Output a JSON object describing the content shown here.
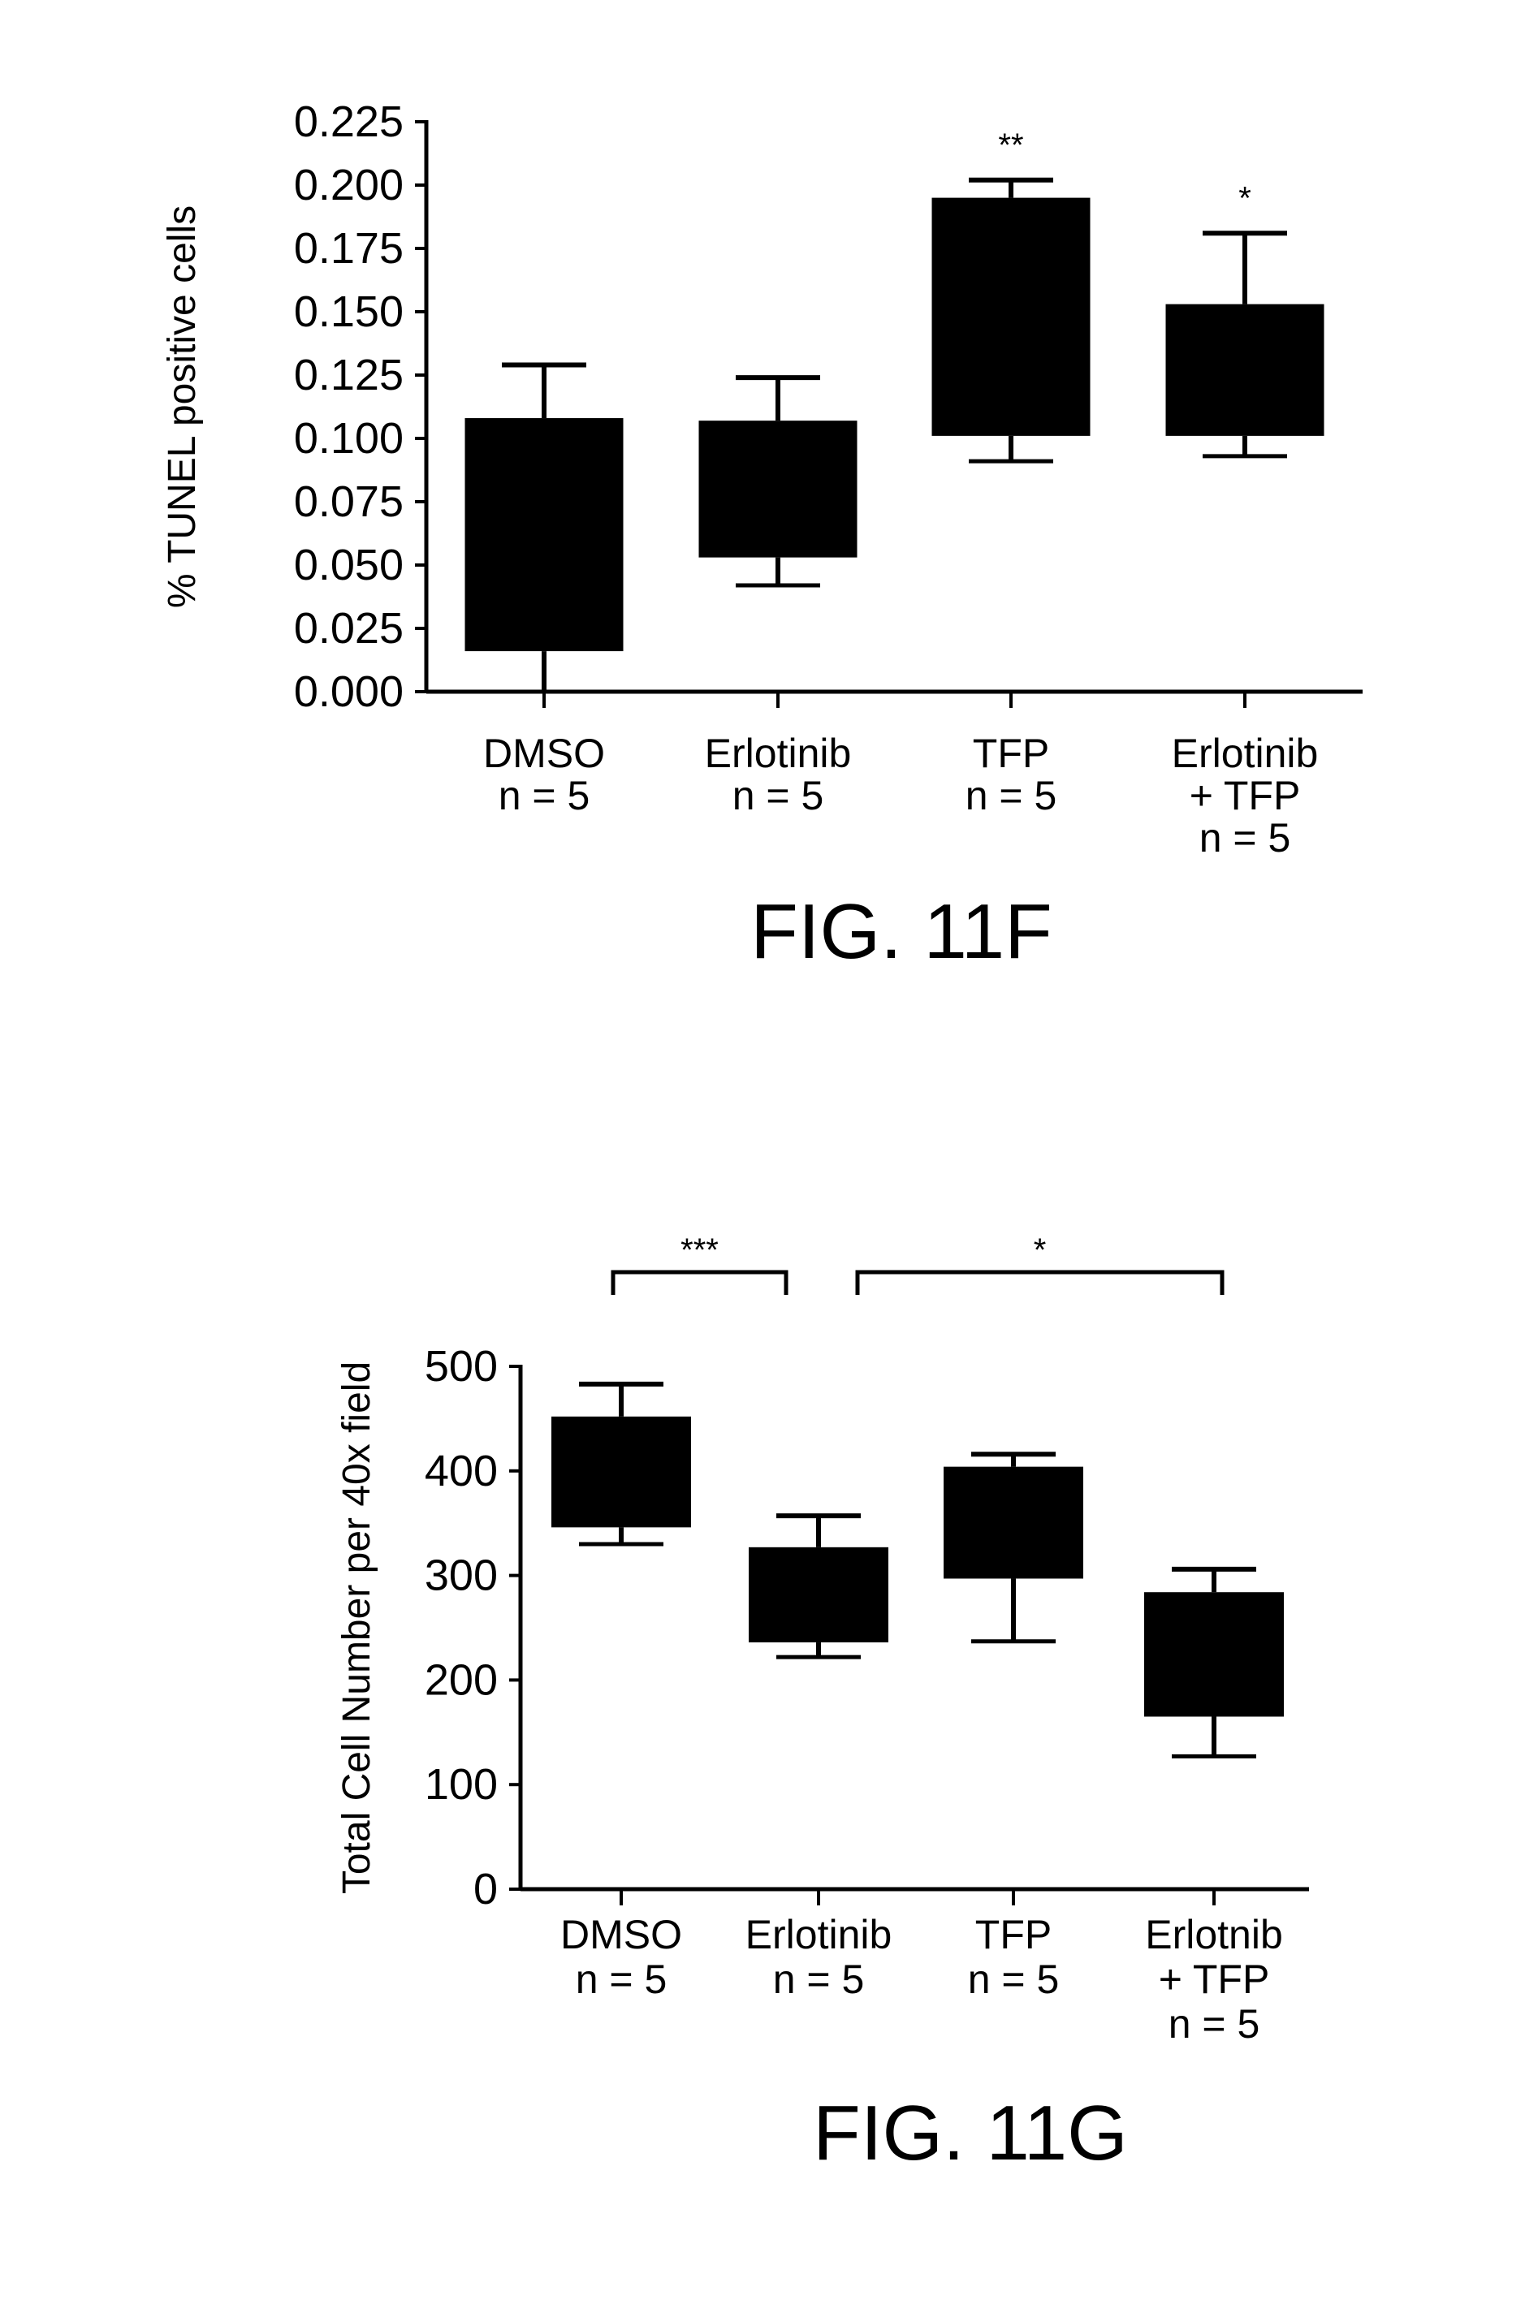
{
  "chart_data": [
    {
      "type": "box",
      "ylabel": "% TUNEL positive cells",
      "ylim": [
        0,
        0.225
      ],
      "yticks": [
        "0.000",
        "0.025",
        "0.050",
        "0.075",
        "0.100",
        "0.125",
        "0.150",
        "0.175",
        "0.200",
        "0.225"
      ],
      "categories": [
        [
          "DMSO",
          "n = 5"
        ],
        [
          "Erlotinib",
          "n = 5"
        ],
        [
          "TFP",
          "n = 5"
        ],
        [
          "Erlotinib",
          "+ TFP",
          "n = 5"
        ]
      ],
      "boxes": [
        {
          "min": 0.0,
          "q1": 0.016,
          "q3": 0.108,
          "max": 0.129
        },
        {
          "min": 0.042,
          "q1": 0.053,
          "q3": 0.107,
          "max": 0.124
        },
        {
          "min": 0.091,
          "q1": 0.101,
          "q3": 0.195,
          "max": 0.202
        },
        {
          "min": 0.093,
          "q1": 0.101,
          "q3": 0.153,
          "max": 0.181
        }
      ],
      "annotations": [
        {
          "category": 2,
          "text": "**"
        },
        {
          "category": 3,
          "text": "*"
        }
      ],
      "figure_label": "FIG. 11F"
    },
    {
      "type": "box",
      "ylabel": "Total Cell Number per 40x field",
      "ylim": [
        0,
        500
      ],
      "yticks": [
        "0",
        "100",
        "200",
        "300",
        "400",
        "500"
      ],
      "categories": [
        [
          "DMSO",
          "n = 5"
        ],
        [
          "Erlotinib",
          "n = 5"
        ],
        [
          "TFP",
          "n = 5"
        ],
        [
          "Erlotnib",
          "+ TFP",
          "n = 5"
        ]
      ],
      "boxes": [
        {
          "min": 330,
          "q1": 346,
          "q3": 452,
          "max": 483
        },
        {
          "min": 222,
          "q1": 236,
          "q3": 327,
          "max": 357
        },
        {
          "min": 237,
          "q1": 297,
          "q3": 404,
          "max": 416
        },
        {
          "min": 127,
          "q1": 165,
          "q3": 284,
          "max": 306
        }
      ],
      "brackets": [
        {
          "from": 0,
          "to": 1,
          "text": "***"
        },
        {
          "from": 1,
          "to": 3,
          "text": "*"
        }
      ],
      "figure_label": "FIG. 11G"
    }
  ]
}
